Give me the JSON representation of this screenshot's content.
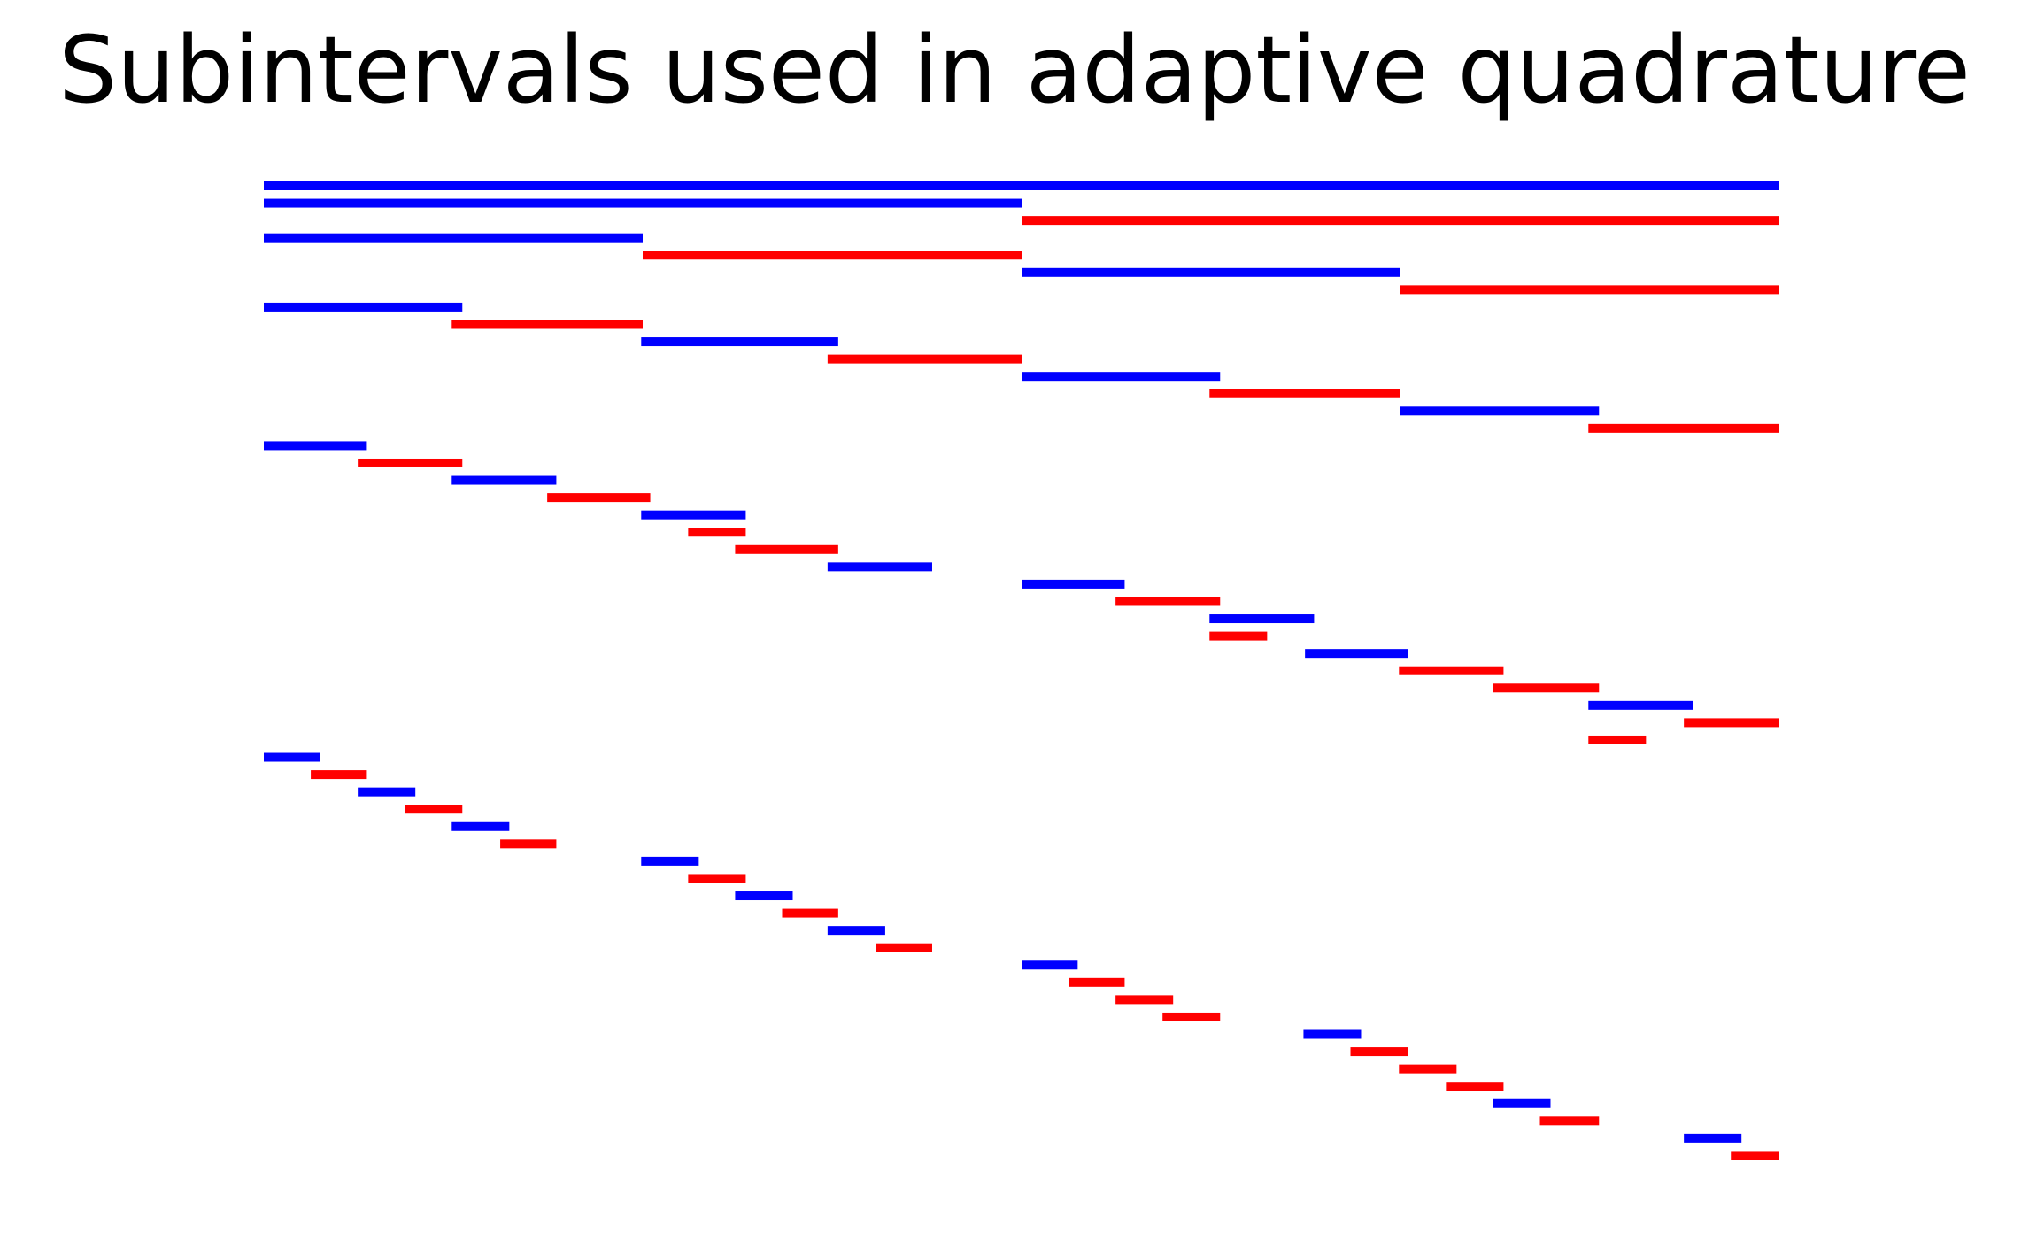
{
  "chart_data": {
    "type": "interval-tree",
    "title": "Subintervals used in adaptive quadrature",
    "xlim": [
      0,
      1
    ],
    "axes_visible": false,
    "colors": {
      "left_child": "#0000ff",
      "right_child": "#ff0000"
    },
    "intervals": [
      {
        "a": 0,
        "b": 1,
        "level": 0,
        "c": "b"
      },
      {
        "a": 0,
        "b": 0.5,
        "level": 1,
        "c": "b"
      },
      {
        "a": 0.5,
        "b": 1,
        "level": 1,
        "c": "r"
      },
      {
        "a": 0,
        "b": 0.25,
        "level": 2,
        "c": "b"
      },
      {
        "a": 0.25,
        "b": 0.5,
        "level": 2,
        "c": "r"
      },
      {
        "a": 0.5,
        "b": 0.75,
        "level": 2,
        "c": "b"
      },
      {
        "a": 0.75,
        "b": 1,
        "level": 2,
        "c": "r"
      },
      {
        "a": 0,
        "b": 0.131,
        "level": 3,
        "c": "b"
      },
      {
        "a": 0.124,
        "b": 0.25,
        "level": 3,
        "c": "r"
      },
      {
        "a": 0.249,
        "b": 0.379,
        "level": 3,
        "c": "b"
      },
      {
        "a": 0.372,
        "b": 0.5,
        "level": 3,
        "c": "r"
      },
      {
        "a": 0.5,
        "b": 0.631,
        "level": 3,
        "c": "b"
      },
      {
        "a": 0.624,
        "b": 0.75,
        "level": 3,
        "c": "r"
      },
      {
        "a": 0.75,
        "b": 0.881,
        "level": 3,
        "c": "b"
      },
      {
        "a": 0.874,
        "b": 1,
        "level": 3,
        "c": "r"
      },
      {
        "a": 0,
        "b": 0.068,
        "level": 4,
        "c": "b"
      },
      {
        "a": 0.062,
        "b": 0.131,
        "level": 4,
        "c": "r"
      },
      {
        "a": 0.124,
        "b": 0.193,
        "level": 4,
        "c": "b"
      },
      {
        "a": 0.187,
        "b": 0.255,
        "level": 4,
        "c": "r"
      },
      {
        "a": 0.249,
        "b": 0.318,
        "level": 4,
        "c": "b"
      },
      {
        "a": 0.28,
        "b": 0.318,
        "level": 4,
        "c": "r"
      },
      {
        "a": 0.311,
        "b": 0.379,
        "level": 4,
        "c": "r"
      },
      {
        "a": 0.372,
        "b": 0.441,
        "level": 4,
        "c": "b"
      },
      {
        "a": 0.5,
        "b": 0.568,
        "level": 4,
        "c": "b"
      },
      {
        "a": 0.562,
        "b": 0.631,
        "level": 4,
        "c": "r"
      },
      {
        "a": 0.624,
        "b": 0.693,
        "level": 4,
        "c": "b"
      },
      {
        "a": 0.624,
        "b": 0.662,
        "level": 4,
        "c": "r"
      },
      {
        "a": 0.687,
        "b": 0.755,
        "level": 4,
        "c": "b"
      },
      {
        "a": 0.749,
        "b": 0.818,
        "level": 4,
        "c": "r"
      },
      {
        "a": 0.811,
        "b": 0.881,
        "level": 4,
        "c": "r"
      },
      {
        "a": 0.874,
        "b": 0.943,
        "level": 4,
        "c": "b"
      },
      {
        "a": 0.937,
        "b": 1,
        "level": 4,
        "c": "r"
      },
      {
        "a": 0.874,
        "b": 0.912,
        "level": 4,
        "c": "r"
      },
      {
        "a": 0.0,
        "b": 0.037,
        "level": 5,
        "c": "b"
      },
      {
        "a": 0.031,
        "b": 0.068,
        "level": 5,
        "c": "r"
      },
      {
        "a": 0.062,
        "b": 0.1,
        "level": 5,
        "c": "b"
      },
      {
        "a": 0.093,
        "b": 0.131,
        "level": 5,
        "c": "r"
      },
      {
        "a": 0.124,
        "b": 0.162,
        "level": 5,
        "c": "b"
      },
      {
        "a": 0.156,
        "b": 0.193,
        "level": 5,
        "c": "r"
      },
      {
        "a": 0.249,
        "b": 0.287,
        "level": 5,
        "c": "b"
      },
      {
        "a": 0.28,
        "b": 0.318,
        "level": 5,
        "c": "r"
      },
      {
        "a": 0.311,
        "b": 0.349,
        "level": 5,
        "c": "b"
      },
      {
        "a": 0.342,
        "b": 0.379,
        "level": 5,
        "c": "r"
      },
      {
        "a": 0.372,
        "b": 0.41,
        "level": 5,
        "c": "b"
      },
      {
        "a": 0.404,
        "b": 0.441,
        "level": 5,
        "c": "r"
      },
      {
        "a": 0.5,
        "b": 0.537,
        "level": 5,
        "c": "b"
      },
      {
        "a": 0.531,
        "b": 0.568,
        "level": 5,
        "c": "r"
      },
      {
        "a": 0.562,
        "b": 0.6,
        "level": 5,
        "c": "r"
      },
      {
        "a": 0.593,
        "b": 0.631,
        "level": 5,
        "c": "r"
      },
      {
        "a": 0.686,
        "b": 0.724,
        "level": 5,
        "c": "b"
      },
      {
        "a": 0.717,
        "b": 0.755,
        "level": 5,
        "c": "r"
      },
      {
        "a": 0.749,
        "b": 0.787,
        "level": 5,
        "c": "r"
      },
      {
        "a": 0.78,
        "b": 0.818,
        "level": 5,
        "c": "r"
      },
      {
        "a": 0.811,
        "b": 0.849,
        "level": 5,
        "c": "b"
      },
      {
        "a": 0.842,
        "b": 0.881,
        "level": 5,
        "c": "r"
      },
      {
        "a": 0.937,
        "b": 0.975,
        "level": 5,
        "c": "b"
      },
      {
        "a": 0.968,
        "b": 1,
        "level": 5,
        "c": "r"
      }
    ]
  }
}
